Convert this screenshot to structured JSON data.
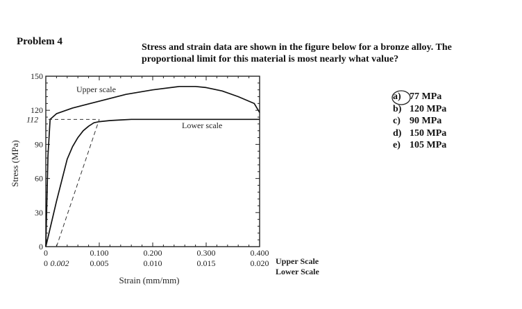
{
  "problem": {
    "title": "Problem 4"
  },
  "question": {
    "text": "Stress and strain data are shown in the figure below for a bronze alloy.  The proportional limit for this material is most nearly what value?"
  },
  "answers": [
    {
      "letter": "a)",
      "text": "77 MPa"
    },
    {
      "letter": "b)",
      "text": "120 MPa"
    },
    {
      "letter": "c)",
      "text": "90 MPa"
    },
    {
      "letter": "d)",
      "text": "150 MPa"
    },
    {
      "letter": "e)",
      "text": "105 MPa"
    }
  ],
  "handwriting": {
    "answer_circle": "a)",
    "note_y": "112",
    "note_x": "0.002"
  },
  "chart_data": {
    "type": "line",
    "xlabel": "Strain (mm/mm)",
    "ylabel": "Stress (MPa)",
    "ylim": [
      0,
      150
    ],
    "yticks": [
      "0",
      "30",
      "60",
      "90",
      "120",
      "150"
    ],
    "x_upper": {
      "label": "Upper Scale",
      "lim": [
        0,
        0.4
      ],
      "ticks": [
        "0",
        "0.100",
        "0.200",
        "0.300",
        "0.400"
      ]
    },
    "x_lower": {
      "label": "Lower Scale",
      "lim": [
        0,
        0.02
      ],
      "ticks": [
        "0",
        "0.005",
        "0.010",
        "0.015",
        "0.020"
      ]
    },
    "series": [
      {
        "name": "Upper scale",
        "scale": "upper",
        "x": [
          0.0,
          0.004,
          0.008,
          0.02,
          0.05,
          0.1,
          0.15,
          0.2,
          0.25,
          0.28,
          0.3,
          0.33,
          0.36,
          0.39,
          0.4
        ],
        "y": [
          0,
          80,
          112,
          117,
          122,
          128,
          134,
          138,
          141,
          141,
          140,
          137,
          132,
          126,
          118
        ]
      },
      {
        "name": "Lower scale",
        "scale": "lower",
        "x": [
          0.0,
          0.001,
          0.002,
          0.0025,
          0.003,
          0.0035,
          0.004,
          0.0045,
          0.005,
          0.006,
          0.007,
          0.008,
          0.01,
          0.015,
          0.02
        ],
        "y": [
          0,
          40,
          77,
          88,
          96,
          102,
          106,
          109,
          110,
          111,
          111.5,
          112,
          112,
          112,
          112
        ]
      }
    ]
  }
}
